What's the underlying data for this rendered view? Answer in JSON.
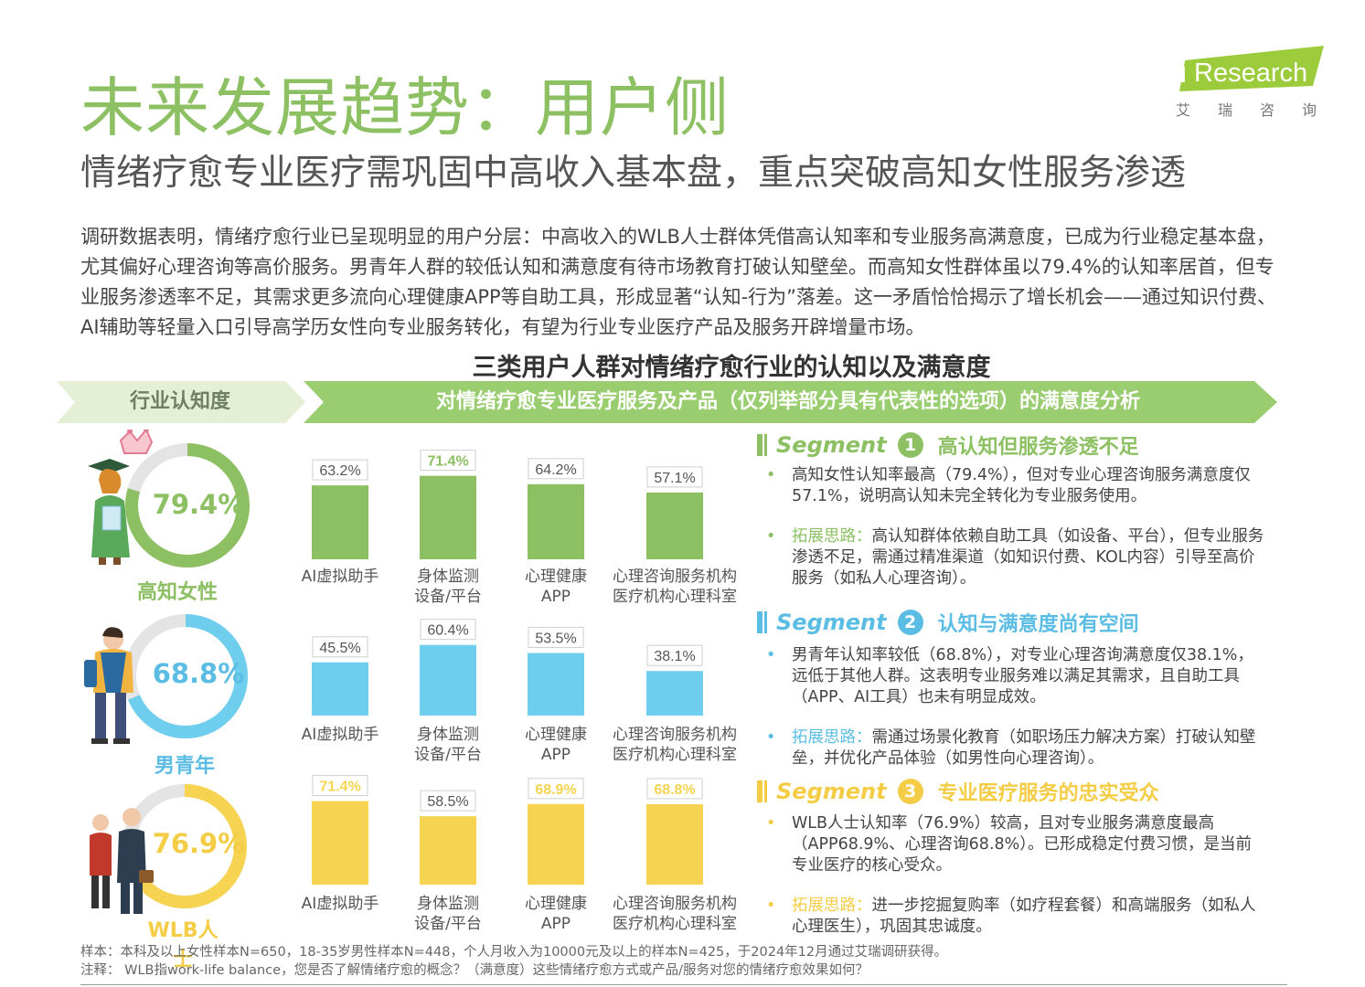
{
  "header": {
    "title": "未来发展趋势：用户侧",
    "subtitle": "情绪疗愈专业医疗需巩固中高收入基本盘，重点突破高知女性服务渗透"
  },
  "logo": {
    "brand": "Research",
    "chinese": [
      "艾",
      "瑞",
      "咨",
      "询"
    ]
  },
  "intro": "调研数据表明，情绪疗愈行业已呈现明显的用户分层：中高收入的WLB人士群体凭借高认知率和专业服务高满意度，已成为行业稳定基本盘，尤其偏好心理咨询等高价服务。男青年人群的较低认知和满意度有待市场教育打破认知壁垒。而高知女性群体虽以79.4%的认知率居首，但专业服务渗透率不足，其需求更多流向心理健康APP等自助工具，形成显著“认知-行为”落差。这一矛盾恰恰揭示了增长机会——通过知识付费、AI辅助等轻量入口引导高学历女性向专业服务转化，有望为行业专业医疗产品及服务开辟增量市场。",
  "band": {
    "left": "行业认知度",
    "right": "对情绪疗愈专业医疗服务及产品（仅列举部分具有代表性的选项）的满意度分析"
  },
  "chart_data": {
    "title": "三类用户人群对情绪疗愈行业的认知以及满意度",
    "type": "bar",
    "categories": [
      [
        "AI虚拟助手"
      ],
      [
        "身体监测",
        "设备/平台"
      ],
      [
        "心理健康",
        "APP"
      ],
      [
        "心理咨询服务机构",
        "医疗机构心理科室"
      ]
    ],
    "ylim": [
      0,
      75
    ],
    "series": [
      {
        "name": "高知女性",
        "awareness": 79.4,
        "awareness_label": "79.4%",
        "values": [
          63.2,
          71.4,
          64.2,
          57.1
        ],
        "labels": [
          "63.2%",
          "71.4%",
          "64.2%",
          "57.1%"
        ],
        "highlight": [
          false,
          true,
          false,
          false
        ],
        "color": "#8cc063"
      },
      {
        "name": "男青年",
        "awareness": 68.8,
        "awareness_label": "68.8%",
        "values": [
          45.5,
          60.4,
          53.5,
          38.1
        ],
        "labels": [
          "45.5%",
          "60.4%",
          "53.5%",
          "38.1%"
        ],
        "highlight": [
          false,
          false,
          false,
          false
        ],
        "color": "#6fcdee"
      },
      {
        "name": "WLB人士",
        "awareness": 76.9,
        "awareness_label": "76.9%",
        "values": [
          71.4,
          58.5,
          68.9,
          68.8
        ],
        "labels": [
          "71.4%",
          "58.5%",
          "68.9%",
          "68.8%"
        ],
        "highlight": [
          true,
          false,
          true,
          true
        ],
        "color": "#f6d452"
      }
    ]
  },
  "segments": [
    {
      "word": "Segment",
      "num": "1",
      "title": "高认知但服务渗透不足",
      "point1": "高知女性认知率最高（79.4%），但对专业心理咨询服务满意度仅57.1%，说明高认知未完全转化为专业服务使用。",
      "kw": "拓展思路：",
      "point2": "高认知群体依赖自助工具（如设备、平台），但专业服务渗透不足，需通过精准渠道（如知识付费、KOL内容）引导至高价服务（如私人心理咨询）。"
    },
    {
      "word": "Segment",
      "num": "2",
      "title": "认知与满意度尚有空间",
      "point1": "男青年认知率较低（68.8%），对专业心理咨询满意度仅38.1%，远低于其他人群。这表明专业服务难以满足其需求，且自助工具（APP、AI工具）也未有明显成效。",
      "kw": "拓展思路：",
      "point2": "需通过场景化教育（如职场压力解决方案）打破认知壁垒，并优化产品体验（如男性向心理咨询）。"
    },
    {
      "word": "Segment",
      "num": "3",
      "title": "专业医疗服务的忠实受众",
      "point1": "WLB人士认知率（76.9%）较高，且对专业服务满意度最高（APP68.9%、心理咨询68.8%）。已形成稳定付费习惯，是当前专业医疗的核心受众。",
      "kw": "拓展思路：",
      "point2": "进一步挖掘复购率（如疗程套餐）和高端服务（如私人心理医生），巩固其忠诚度。"
    }
  ],
  "footnotes": {
    "sample": "样本：本科及以上女性样本N=650，18-35岁男性样本N=448，个人月收入为10000元及以上的样本N=425，于2024年12月通过艾瑞调研获得。",
    "note": "注释：  WLB指work-life balance，您是否了解情绪疗愈的概念？（满意度）这些情绪疗愈方式或产品/服务对您的情绪疗愈效果如何？"
  }
}
